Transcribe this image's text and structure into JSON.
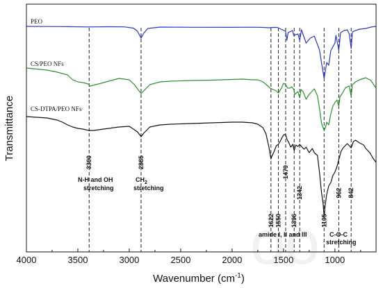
{
  "chart_data": {
    "type": "line",
    "title": "",
    "xlabel": "Wavenumber (cm",
    "xlabel_sup": "-1",
    "xlabel_close": ")",
    "ylabel": "Transmittance",
    "xlim": [
      4000,
      600
    ],
    "x_reversed": true,
    "x_ticks": [
      4000,
      3500,
      3000,
      2500,
      2000,
      1500,
      1000
    ],
    "grid": false,
    "legend": "none",
    "watermark": "oo",
    "series": [
      {
        "name": "PEO",
        "color": "#2b35c8",
        "offset": 0,
        "points": [
          [
            4000,
            0
          ],
          [
            3800,
            0.2
          ],
          [
            3600,
            0.4
          ],
          [
            3400,
            0.8
          ],
          [
            3200,
            0.5
          ],
          [
            3050,
            0.7
          ],
          [
            2960,
            2.5
          ],
          [
            2920,
            7
          ],
          [
            2885,
            17
          ],
          [
            2860,
            10
          ],
          [
            2820,
            3
          ],
          [
            2700,
            1
          ],
          [
            2400,
            1.3
          ],
          [
            2000,
            1.4
          ],
          [
            1800,
            1.2
          ],
          [
            1700,
            1.5
          ],
          [
            1640,
            2
          ],
          [
            1600,
            1.5
          ],
          [
            1560,
            1.5
          ],
          [
            1480,
            7
          ],
          [
            1467,
            20
          ],
          [
            1455,
            9
          ],
          [
            1412,
            6
          ],
          [
            1400,
            13
          ],
          [
            1360,
            11
          ],
          [
            1342,
            20
          ],
          [
            1325,
            5
          ],
          [
            1280,
            24
          ],
          [
            1240,
            17
          ],
          [
            1200,
            14
          ],
          [
            1150,
            34
          ],
          [
            1120,
            62
          ],
          [
            1105,
            75
          ],
          [
            1080,
            52
          ],
          [
            1060,
            56
          ],
          [
            1040,
            35
          ],
          [
            1000,
            24
          ],
          [
            990,
            13
          ],
          [
            962,
            34
          ],
          [
            945,
            9
          ],
          [
            910,
            6
          ],
          [
            880,
            5
          ],
          [
            860,
            11
          ],
          [
            842,
            32
          ],
          [
            830,
            8
          ],
          [
            800,
            6
          ],
          [
            760,
            4
          ],
          [
            700,
            3
          ],
          [
            650,
            1
          ],
          [
            600,
            0
          ]
        ]
      },
      {
        "name": "CS/PEO NFs",
        "color": "#2f8f2f",
        "offset": 60,
        "points": [
          [
            4000,
            0
          ],
          [
            3900,
            1.5
          ],
          [
            3800,
            3
          ],
          [
            3700,
            6
          ],
          [
            3600,
            10
          ],
          [
            3550,
            17
          ],
          [
            3500,
            20
          ],
          [
            3450,
            21
          ],
          [
            3400,
            23
          ],
          [
            3380,
            26
          ],
          [
            3300,
            23
          ],
          [
            3200,
            19
          ],
          [
            3100,
            15
          ],
          [
            3000,
            17
          ],
          [
            2950,
            24
          ],
          [
            2920,
            30
          ],
          [
            2885,
            37
          ],
          [
            2860,
            33
          ],
          [
            2800,
            24
          ],
          [
            2700,
            20
          ],
          [
            2600,
            19
          ],
          [
            2400,
            18
          ],
          [
            2200,
            17.5
          ],
          [
            2000,
            16.5
          ],
          [
            1900,
            16
          ],
          [
            1800,
            17
          ],
          [
            1750,
            17
          ],
          [
            1700,
            20
          ],
          [
            1660,
            25
          ],
          [
            1630,
            29
          ],
          [
            1600,
            31
          ],
          [
            1570,
            33
          ],
          [
            1550,
            36
          ],
          [
            1520,
            29
          ],
          [
            1500,
            22
          ],
          [
            1479,
            24
          ],
          [
            1460,
            29
          ],
          [
            1440,
            29
          ],
          [
            1420,
            27
          ],
          [
            1400,
            31
          ],
          [
            1390,
            38
          ],
          [
            1360,
            34
          ],
          [
            1342,
            43
          ],
          [
            1330,
            31
          ],
          [
            1310,
            34
          ],
          [
            1280,
            45
          ],
          [
            1250,
            38
          ],
          [
            1200,
            30
          ],
          [
            1170,
            40
          ],
          [
            1150,
            58
          ],
          [
            1130,
            80
          ],
          [
            1105,
            90
          ],
          [
            1090,
            85
          ],
          [
            1080,
            78
          ],
          [
            1060,
            82
          ],
          [
            1040,
            66
          ],
          [
            1020,
            55
          ],
          [
            1000,
            50
          ],
          [
            980,
            46
          ],
          [
            962,
            55
          ],
          [
            950,
            41
          ],
          [
            930,
            37
          ],
          [
            900,
            29
          ],
          [
            880,
            27
          ],
          [
            860,
            26
          ],
          [
            842,
            41
          ],
          [
            830,
            24
          ],
          [
            800,
            20
          ],
          [
            760,
            17
          ],
          [
            720,
            15
          ],
          [
            700,
            14
          ],
          [
            650,
            18
          ],
          [
            600,
            29
          ]
        ]
      },
      {
        "name": "CS-DTPA/PEO NFs",
        "color": "#111111",
        "offset": 123,
        "points": [
          [
            4000,
            0
          ],
          [
            3900,
            1
          ],
          [
            3800,
            2
          ],
          [
            3700,
            5
          ],
          [
            3650,
            8
          ],
          [
            3600,
            12
          ],
          [
            3550,
            15
          ],
          [
            3500,
            17
          ],
          [
            3450,
            18
          ],
          [
            3390,
            20
          ],
          [
            3350,
            20
          ],
          [
            3300,
            19
          ],
          [
            3200,
            17
          ],
          [
            3100,
            15
          ],
          [
            3000,
            14
          ],
          [
            2960,
            18
          ],
          [
            2920,
            22
          ],
          [
            2885,
            29
          ],
          [
            2860,
            24
          ],
          [
            2800,
            15
          ],
          [
            2700,
            12
          ],
          [
            2600,
            11
          ],
          [
            2400,
            10
          ],
          [
            2200,
            9
          ],
          [
            2000,
            8
          ],
          [
            1900,
            8
          ],
          [
            1800,
            9
          ],
          [
            1750,
            11
          ],
          [
            1700,
            16
          ],
          [
            1670,
            25
          ],
          [
            1640,
            45
          ],
          [
            1622,
            61
          ],
          [
            1610,
            56
          ],
          [
            1590,
            50
          ],
          [
            1570,
            42
          ],
          [
            1550,
            40
          ],
          [
            1530,
            35
          ],
          [
            1510,
            29
          ],
          [
            1495,
            26
          ],
          [
            1479,
            26
          ],
          [
            1465,
            33
          ],
          [
            1450,
            37
          ],
          [
            1430,
            44
          ],
          [
            1410,
            40
          ],
          [
            1396,
            49
          ],
          [
            1380,
            41
          ],
          [
            1360,
            43
          ],
          [
            1342,
            40
          ],
          [
            1320,
            44
          ],
          [
            1300,
            47
          ],
          [
            1280,
            44
          ],
          [
            1250,
            52
          ],
          [
            1220,
            46
          ],
          [
            1200,
            52
          ],
          [
            1170,
            56
          ],
          [
            1150,
            80
          ],
          [
            1130,
            110
          ],
          [
            1115,
            125
          ],
          [
            1105,
            145
          ],
          [
            1095,
            128
          ],
          [
            1080,
            112
          ],
          [
            1060,
            100
          ],
          [
            1040,
            95
          ],
          [
            1020,
            85
          ],
          [
            1000,
            80
          ],
          [
            980,
            72
          ],
          [
            962,
            62
          ],
          [
            940,
            50
          ],
          [
            920,
            45
          ],
          [
            900,
            42
          ],
          [
            880,
            39
          ],
          [
            860,
            42
          ],
          [
            842,
            45
          ],
          [
            820,
            36
          ],
          [
            800,
            34
          ],
          [
            760,
            38
          ],
          [
            720,
            41
          ],
          [
            700,
            46
          ],
          [
            660,
            52
          ],
          [
            630,
            60
          ],
          [
            600,
            66
          ]
        ]
      }
    ],
    "guide_lines": [
      3390,
      2885,
      1622,
      1550,
      1479,
      1396,
      1342,
      1105,
      962,
      842
    ],
    "peak_labels": [
      {
        "x": 3390,
        "text": "3390"
      },
      {
        "x": 2885,
        "text": "2885"
      },
      {
        "x": 1622,
        "text": "1622"
      },
      {
        "x": 1550,
        "text": "1550"
      },
      {
        "x": 1479,
        "text": "1479"
      },
      {
        "x": 1396,
        "text": "1396"
      },
      {
        "x": 1342,
        "text": "1342"
      },
      {
        "x": 1105,
        "text": "1105"
      },
      {
        "x": 962,
        "text": "962"
      },
      {
        "x": 842,
        "text": "842"
      }
    ],
    "annotations": [
      {
        "lines": [
          "N-H and OH",
          "stretching"
        ]
      },
      {
        "lines": [
          "CH",
          "stretching"
        ],
        "sub": "2"
      },
      {
        "lines": [
          "amide I, II and III"
        ]
      },
      {
        "lines": [
          "C-O-C",
          "stretching"
        ]
      }
    ]
  }
}
